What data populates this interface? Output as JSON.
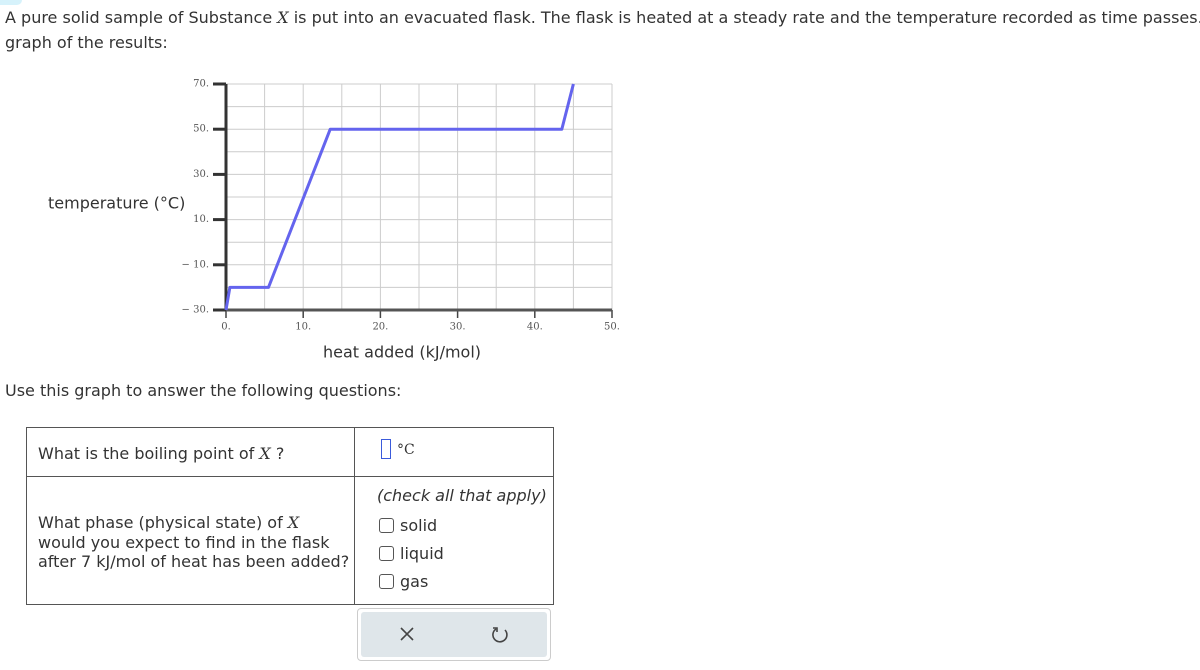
{
  "intro": {
    "line1": [
      "A pure solid sample of Substance ",
      "X",
      " is put into an evacuated flask. The flask is heated at a steady rate and the temperature recorded as time passes. Here"
    ],
    "line2": "graph of the results:"
  },
  "chart_data": {
    "type": "line",
    "ylabel": "temperature (°C)",
    "xlabel": "heat added (kJ/mol)",
    "x": [
      0,
      0.5,
      5.5,
      13.5,
      43.5,
      45
    ],
    "values": [
      -30,
      -20,
      -20,
      50,
      50,
      70
    ],
    "color": "#6464ee",
    "xlim": [
      0,
      50
    ],
    "ylim": [
      -30,
      70
    ],
    "xticks": [
      {
        "value": 0,
        "label": "0."
      },
      {
        "value": 10,
        "label": "10."
      },
      {
        "value": 20,
        "label": "20."
      },
      {
        "value": 30,
        "label": "30."
      },
      {
        "value": 40,
        "label": "40."
      },
      {
        "value": 50,
        "label": "50."
      }
    ],
    "yticks": [
      {
        "value": 70,
        "label": "70."
      },
      {
        "value": 50,
        "label": "50."
      },
      {
        "value": 30,
        "label": "30."
      },
      {
        "value": 10,
        "label": "10."
      },
      {
        "value": -10,
        "label": "− 10."
      },
      {
        "value": -30,
        "label": "− 30."
      }
    ],
    "grid": true
  },
  "prompt": "Use this graph to answer the following questions:",
  "questions": [
    {
      "text": [
        "What is the boiling point of ",
        "X",
        " ?"
      ],
      "unit": "°C"
    },
    {
      "text": [
        "What phase (physical state) of ",
        "X",
        " would you expect to find in the flask after 7 kJ/mol of heat has been added?"
      ],
      "hint": "(check all that apply)",
      "options": [
        "solid",
        "liquid",
        "gas"
      ]
    }
  ]
}
